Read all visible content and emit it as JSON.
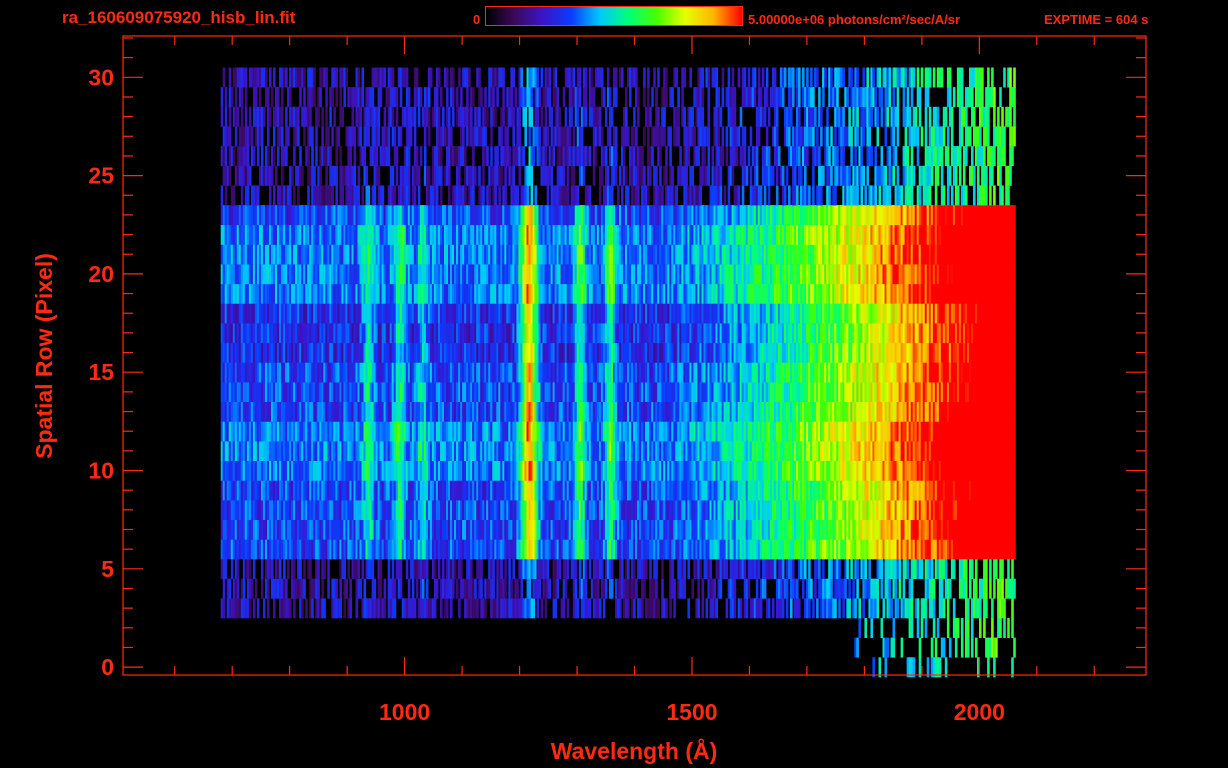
{
  "header": {
    "filename": "ra_160609075920_hisb_lin.fit",
    "colorbar_min": "0",
    "colorbar_max": "5.00000e+06 photons/cm²/sec/A/sr",
    "exptime": "EXPTIME = 604 s"
  },
  "colors": {
    "axis": "#ff2a12",
    "background": "#000000",
    "colormap": [
      "#000000",
      "#3a0a5a",
      "#3b14c8",
      "#0a3cff",
      "#00c8ff",
      "#00ff7a",
      "#46ff00",
      "#e6ff00",
      "#ffb400",
      "#ff0000"
    ]
  },
  "chart_data": {
    "type": "heatmap",
    "title": "",
    "xlabel": "Wavelength (Å)",
    "ylabel": "Spatial Row (Pixel)",
    "xlim": [
      510,
      2290
    ],
    "ylim": [
      -0.4,
      32.1
    ],
    "x_ticks": [
      1000,
      1500,
      2000
    ],
    "y_ticks": [
      0,
      5,
      10,
      15,
      20,
      25,
      30
    ],
    "x_minor_step": 100,
    "y_minor_step": 1,
    "colorbar_range": [
      0,
      5000000
    ],
    "data_extent": {
      "x": [
        680,
        2060
      ],
      "rows": [
        0,
        30
      ]
    },
    "bright_rows": [
      6,
      23
    ],
    "emission_lines": [
      {
        "x": 1215,
        "label": ""
      },
      {
        "x": 1304,
        "label": ""
      },
      {
        "x": 1356,
        "label": ""
      }
    ],
    "continuum_rise": {
      "start": 1450,
      "peak": 2010,
      "edge": 2060
    },
    "grid": false
  }
}
